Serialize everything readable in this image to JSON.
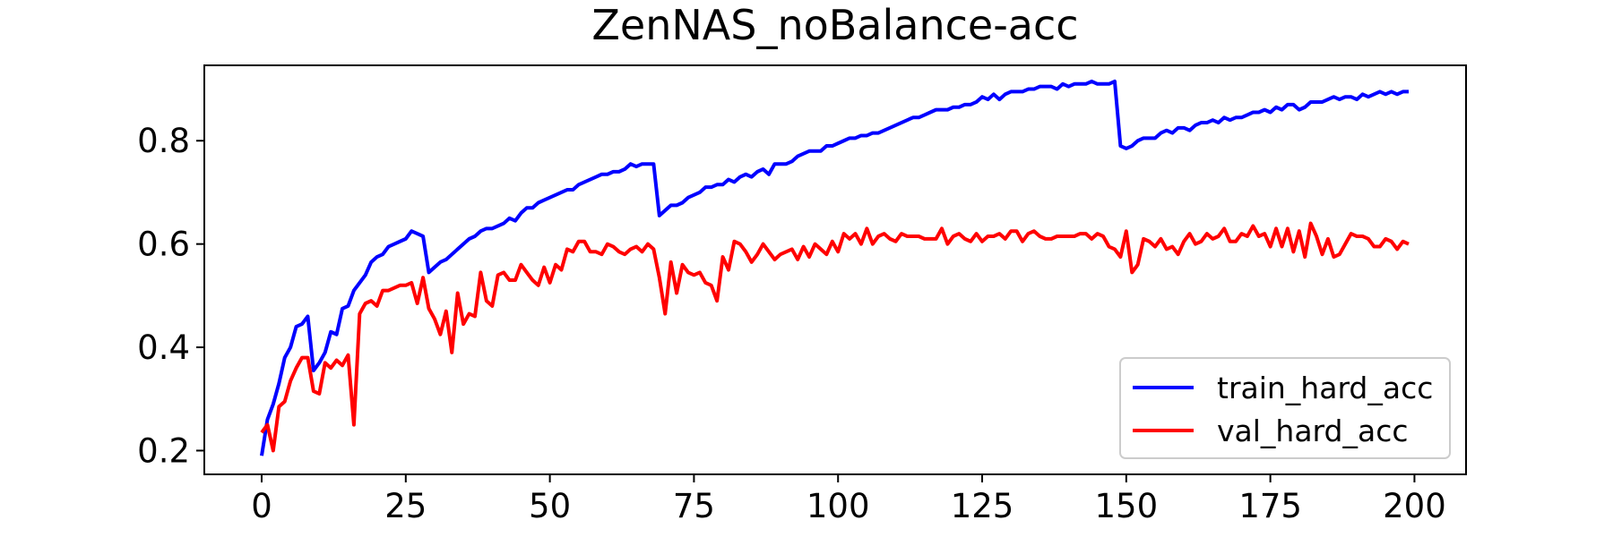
{
  "chart_data": {
    "type": "line",
    "title": "ZenNAS_noBalance-acc",
    "x": [
      0,
      1,
      2,
      3,
      4,
      5,
      6,
      7,
      8,
      9,
      10,
      11,
      12,
      13,
      14,
      15,
      16,
      17,
      18,
      19,
      20,
      21,
      22,
      23,
      24,
      25,
      26,
      27,
      28,
      29,
      30,
      31,
      32,
      33,
      34,
      35,
      36,
      37,
      38,
      39,
      40,
      41,
      42,
      43,
      44,
      45,
      46,
      47,
      48,
      49,
      50,
      51,
      52,
      53,
      54,
      55,
      56,
      57,
      58,
      59,
      60,
      61,
      62,
      63,
      64,
      65,
      66,
      67,
      68,
      69,
      70,
      71,
      72,
      73,
      74,
      75,
      76,
      77,
      78,
      79,
      80,
      81,
      82,
      83,
      84,
      85,
      86,
      87,
      88,
      89,
      90,
      91,
      92,
      93,
      94,
      95,
      96,
      97,
      98,
      99,
      100,
      101,
      102,
      103,
      104,
      105,
      106,
      107,
      108,
      109,
      110,
      111,
      112,
      113,
      114,
      115,
      116,
      117,
      118,
      119,
      120,
      121,
      122,
      123,
      124,
      125,
      126,
      127,
      128,
      129,
      130,
      131,
      132,
      133,
      134,
      135,
      136,
      137,
      138,
      139,
      140,
      141,
      142,
      143,
      144,
      145,
      146,
      147,
      148,
      149,
      150,
      151,
      152,
      153,
      154,
      155,
      156,
      157,
      158,
      159,
      160,
      161,
      162,
      163,
      164,
      165,
      166,
      167,
      168,
      169,
      170,
      171,
      172,
      173,
      174,
      175,
      176,
      177,
      178,
      179,
      180,
      181,
      182,
      183,
      184,
      185,
      186,
      187,
      188,
      189,
      190,
      191,
      192,
      193,
      194,
      195,
      196,
      197,
      198,
      199
    ],
    "series": [
      {
        "name": "train_hard_acc",
        "color": "#0000ff",
        "values": [
          0.19,
          0.26,
          0.29,
          0.33,
          0.38,
          0.4,
          0.44,
          0.445,
          0.46,
          0.355,
          0.37,
          0.39,
          0.43,
          0.425,
          0.475,
          0.48,
          0.51,
          0.525,
          0.54,
          0.565,
          0.575,
          0.58,
          0.595,
          0.6,
          0.605,
          0.61,
          0.625,
          0.62,
          0.615,
          0.545,
          0.555,
          0.565,
          0.57,
          0.58,
          0.59,
          0.6,
          0.61,
          0.615,
          0.625,
          0.63,
          0.63,
          0.635,
          0.64,
          0.65,
          0.645,
          0.66,
          0.67,
          0.67,
          0.68,
          0.685,
          0.69,
          0.695,
          0.7,
          0.705,
          0.705,
          0.715,
          0.72,
          0.725,
          0.73,
          0.735,
          0.735,
          0.74,
          0.74,
          0.745,
          0.755,
          0.75,
          0.755,
          0.755,
          0.755,
          0.655,
          0.665,
          0.675,
          0.675,
          0.68,
          0.69,
          0.695,
          0.7,
          0.71,
          0.71,
          0.715,
          0.715,
          0.725,
          0.72,
          0.73,
          0.735,
          0.73,
          0.74,
          0.745,
          0.735,
          0.755,
          0.755,
          0.755,
          0.76,
          0.77,
          0.775,
          0.78,
          0.78,
          0.78,
          0.79,
          0.79,
          0.795,
          0.8,
          0.805,
          0.805,
          0.81,
          0.81,
          0.815,
          0.815,
          0.82,
          0.825,
          0.83,
          0.835,
          0.84,
          0.845,
          0.845,
          0.85,
          0.855,
          0.86,
          0.86,
          0.86,
          0.865,
          0.865,
          0.87,
          0.87,
          0.875,
          0.885,
          0.88,
          0.89,
          0.88,
          0.89,
          0.895,
          0.895,
          0.895,
          0.9,
          0.9,
          0.905,
          0.905,
          0.905,
          0.9,
          0.91,
          0.905,
          0.91,
          0.91,
          0.91,
          0.915,
          0.91,
          0.91,
          0.91,
          0.915,
          0.79,
          0.785,
          0.79,
          0.8,
          0.805,
          0.805,
          0.805,
          0.815,
          0.82,
          0.815,
          0.825,
          0.825,
          0.82,
          0.83,
          0.835,
          0.835,
          0.84,
          0.835,
          0.845,
          0.84,
          0.845,
          0.845,
          0.85,
          0.855,
          0.855,
          0.86,
          0.855,
          0.865,
          0.86,
          0.87,
          0.87,
          0.86,
          0.865,
          0.875,
          0.875,
          0.875,
          0.88,
          0.885,
          0.88,
          0.885,
          0.885,
          0.88,
          0.89,
          0.885,
          0.89,
          0.895,
          0.89,
          0.895,
          0.89,
          0.895,
          0.895
        ]
      },
      {
        "name": "val_hard_acc",
        "color": "#ff0000",
        "values": [
          0.235,
          0.25,
          0.2,
          0.285,
          0.295,
          0.335,
          0.36,
          0.38,
          0.38,
          0.315,
          0.31,
          0.37,
          0.36,
          0.375,
          0.365,
          0.385,
          0.25,
          0.465,
          0.485,
          0.49,
          0.48,
          0.51,
          0.51,
          0.515,
          0.52,
          0.52,
          0.525,
          0.485,
          0.535,
          0.475,
          0.455,
          0.425,
          0.47,
          0.39,
          0.505,
          0.445,
          0.465,
          0.46,
          0.545,
          0.49,
          0.48,
          0.54,
          0.545,
          0.53,
          0.53,
          0.56,
          0.545,
          0.53,
          0.52,
          0.555,
          0.525,
          0.56,
          0.55,
          0.59,
          0.585,
          0.605,
          0.605,
          0.585,
          0.585,
          0.58,
          0.6,
          0.595,
          0.585,
          0.58,
          0.59,
          0.595,
          0.585,
          0.6,
          0.59,
          0.535,
          0.465,
          0.565,
          0.505,
          0.56,
          0.545,
          0.54,
          0.545,
          0.525,
          0.52,
          0.49,
          0.575,
          0.55,
          0.605,
          0.6,
          0.585,
          0.565,
          0.58,
          0.6,
          0.585,
          0.57,
          0.58,
          0.585,
          0.59,
          0.57,
          0.595,
          0.575,
          0.6,
          0.59,
          0.58,
          0.605,
          0.585,
          0.62,
          0.61,
          0.62,
          0.6,
          0.63,
          0.6,
          0.615,
          0.62,
          0.61,
          0.605,
          0.62,
          0.615,
          0.615,
          0.615,
          0.61,
          0.61,
          0.61,
          0.63,
          0.6,
          0.615,
          0.62,
          0.61,
          0.605,
          0.62,
          0.605,
          0.615,
          0.615,
          0.62,
          0.61,
          0.625,
          0.625,
          0.605,
          0.62,
          0.625,
          0.615,
          0.61,
          0.61,
          0.615,
          0.615,
          0.615,
          0.615,
          0.62,
          0.62,
          0.61,
          0.62,
          0.615,
          0.595,
          0.59,
          0.575,
          0.625,
          0.545,
          0.56,
          0.61,
          0.605,
          0.595,
          0.61,
          0.59,
          0.595,
          0.58,
          0.605,
          0.62,
          0.6,
          0.605,
          0.62,
          0.61,
          0.615,
          0.63,
          0.605,
          0.605,
          0.62,
          0.615,
          0.635,
          0.615,
          0.62,
          0.595,
          0.63,
          0.595,
          0.63,
          0.585,
          0.625,
          0.575,
          0.64,
          0.615,
          0.58,
          0.61,
          0.575,
          0.58,
          0.6,
          0.62,
          0.615,
          0.615,
          0.61,
          0.595,
          0.595,
          0.61,
          0.605,
          0.59,
          0.605,
          0.6
        ]
      }
    ],
    "xlim": [
      -9.95,
      208.95
    ],
    "xticks": [
      0,
      25,
      50,
      75,
      100,
      125,
      150,
      175,
      200
    ],
    "ylim": [
      0.154,
      0.946
    ],
    "yticks": [
      0.2,
      0.4,
      0.6,
      0.8
    ],
    "legend": "lower right"
  }
}
